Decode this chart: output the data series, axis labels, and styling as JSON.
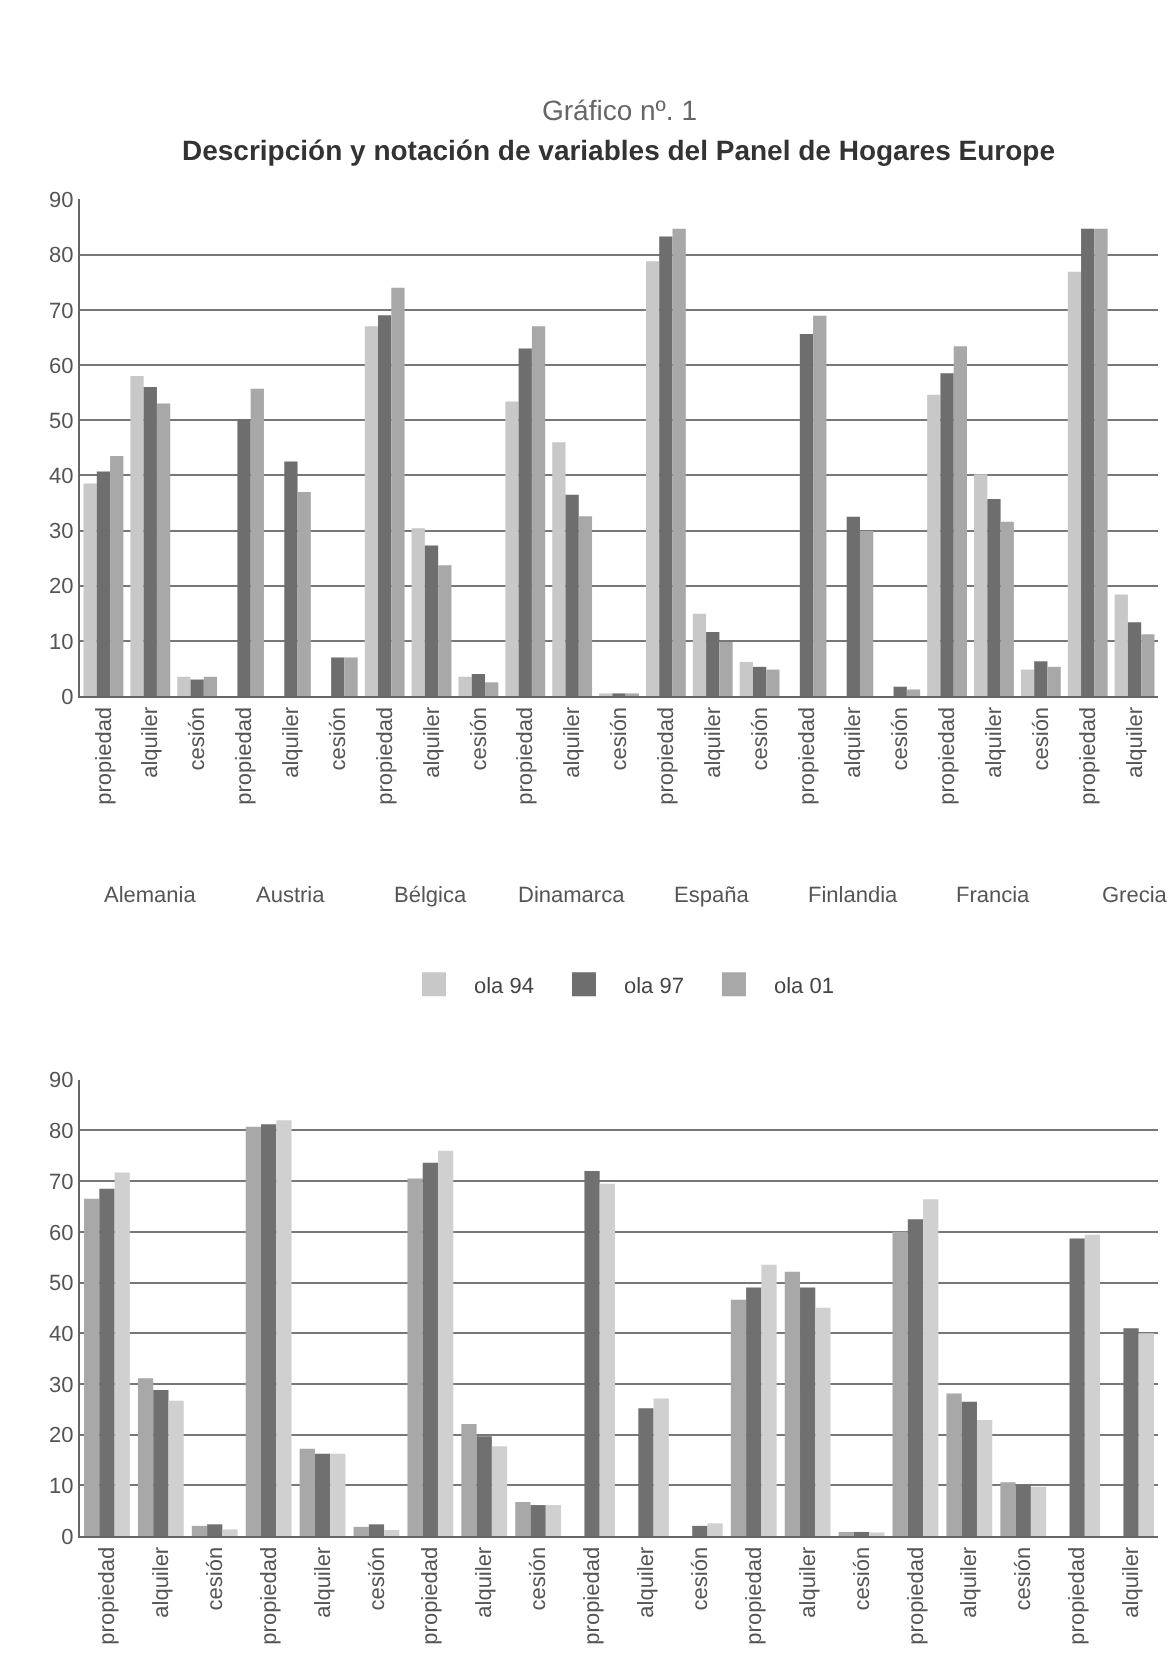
{
  "chart_data": [
    {
      "type": "bar",
      "title": "Gráfico nº. 1",
      "subtitle": "Descripción y notación de variables del Panel de Hogares Europe",
      "categories": [
        "propiedad",
        "alquiler",
        "cesión",
        "propiedad",
        "alquiler",
        "cesión",
        "propiedad",
        "alquiler",
        "cesión",
        "propiedad",
        "alquiler",
        "cesión",
        "propiedad",
        "alquiler",
        "cesión",
        "propiedad",
        "alquiler",
        "cesión",
        "propiedad",
        "alquiler",
        "cesión",
        "propiedad",
        "alquiler"
      ],
      "series": [
        {
          "name": "ola 94",
          "color": "#c8c8c8",
          "values": [
            38.5,
            58,
            3.5,
            null,
            null,
            null,
            67,
            30.4,
            3.5,
            53.4,
            46,
            0.3,
            78.8,
            14.9,
            6.2,
            null,
            null,
            null,
            54.6,
            40.2,
            4.8,
            76.9,
            18.4
          ]
        },
        {
          "name": "ola 97",
          "color": "#6e6e6e",
          "values": [
            40.7,
            56,
            3,
            50.2,
            42.5,
            7,
            69,
            27.3,
            4,
            63,
            36.5,
            0.3,
            83.3,
            11.6,
            5.3,
            65.6,
            32.5,
            1.7,
            58.5,
            35.7,
            6.3,
            84.7,
            13.4
          ]
        },
        {
          "name": "ola 01",
          "color": "#a8a8a8",
          "values": [
            43.5,
            53,
            3.5,
            55.7,
            37,
            7,
            74,
            23.7,
            2.5,
            67,
            32.6,
            0.3,
            84.7,
            9.8,
            4.8,
            68.9,
            29.9,
            1.2,
            63.4,
            31.6,
            5.3,
            84.7,
            11.2
          ]
        }
      ],
      "annotations": [
        "Alemania",
        "Austria",
        "Bélgica",
        "Dinamarca",
        "España",
        "Finlandia",
        "Francia",
        "Grecia"
      ],
      "ylim": [
        0,
        90
      ],
      "yticks": [
        0,
        10,
        20,
        30,
        40,
        50,
        60,
        70,
        80,
        90
      ],
      "grid": "y",
      "legend": "bottom"
    },
    {
      "type": "bar",
      "categories": [
        "propiedad",
        "alquiler",
        "cesión",
        "propiedad",
        "alquiler",
        "cesión",
        "propiedad",
        "alquiler",
        "cesión",
        "propiedad",
        "alquiler",
        "cesión",
        "propiedad",
        "alquiler",
        "cesión",
        "propiedad",
        "alquiler",
        "cesión",
        "propiedad",
        "alquiler"
      ],
      "series": [
        {
          "color": "#a8a8a8",
          "values": [
            66.5,
            31.1,
            2,
            80.7,
            17.2,
            1.8,
            70.5,
            22.1,
            6.7,
            null,
            null,
            null,
            46.6,
            52.1,
            0.8,
            60,
            28.1,
            10.6,
            null,
            null
          ]
        },
        {
          "color": "#707070",
          "values": [
            68.5,
            28.8,
            2.3,
            81.2,
            16.2,
            2.3,
            73.6,
            19.7,
            6.1,
            72,
            25.2,
            2,
            49,
            49,
            0.8,
            62.5,
            26.5,
            10.1,
            58.7,
            41
          ]
        },
        {
          "color": "#d0d0d0",
          "values": [
            71.7,
            26.7,
            1.3,
            82,
            16.2,
            1.2,
            76,
            17.7,
            6.1,
            69.5,
            27.1,
            2.5,
            53.5,
            45,
            0.7,
            66.4,
            22.9,
            9.7,
            59.4,
            40
          ]
        }
      ],
      "ylim": [
        0,
        90
      ],
      "yticks": [
        0,
        10,
        20,
        30,
        40,
        50,
        60,
        70,
        80,
        90
      ],
      "grid": "y",
      "legend": false
    }
  ]
}
